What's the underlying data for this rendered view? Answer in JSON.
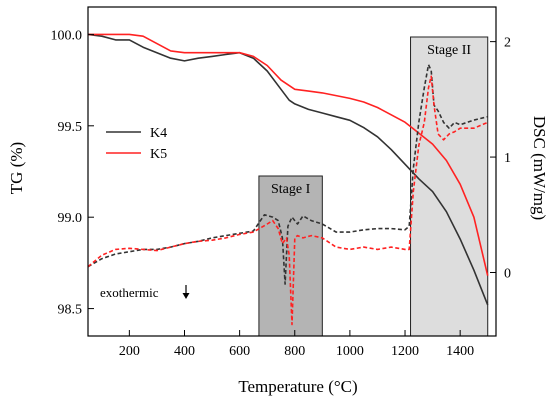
{
  "chart_data": {
    "type": "line",
    "xlabel": "Temperature (°C)",
    "ylabel_left": "TG (%)",
    "ylabel_right": "DSC (mW/mg)",
    "xlim": [
      50,
      1530
    ],
    "ylim_left": [
      98.35,
      100.15
    ],
    "ylim_right": [
      -0.55,
      2.3
    ],
    "x_ticks": [
      200,
      400,
      600,
      800,
      1000,
      1200,
      1400
    ],
    "y_left_ticks": [
      98.5,
      99.0,
      99.5,
      100.0
    ],
    "y_left_tick_labels": [
      "98.5",
      "99.0",
      "99.5",
      "100.0"
    ],
    "y_right_ticks": [
      0,
      1,
      2
    ],
    "legend": {
      "placement": "left",
      "entries": [
        "K4",
        "K5"
      ]
    },
    "colors": {
      "K4": "#333333",
      "K5": "#ff2222"
    },
    "stages": [
      {
        "label": "Stage I",
        "x_range": [
          670,
          900
        ],
        "fill": "#b4b4b4"
      },
      {
        "label": "Stage II",
        "x_range": [
          1220,
          1500
        ],
        "fill": "#dddddd"
      }
    ],
    "annotation": {
      "text": "exothermic",
      "direction": "down"
    },
    "series": [
      {
        "name": "K4",
        "axis": "left",
        "style": "solid",
        "x": [
          50,
          100,
          150,
          200,
          250,
          300,
          350,
          400,
          450,
          500,
          550,
          600,
          650,
          700,
          750,
          780,
          800,
          850,
          900,
          950,
          1000,
          1050,
          1100,
          1150,
          1200,
          1250,
          1300,
          1350,
          1400,
          1450,
          1500
        ],
        "y": [
          100.0,
          99.99,
          99.97,
          99.97,
          99.93,
          99.9,
          99.87,
          99.855,
          99.87,
          99.88,
          99.89,
          99.9,
          99.87,
          99.8,
          99.7,
          99.64,
          99.62,
          99.59,
          99.57,
          99.55,
          99.53,
          99.49,
          99.44,
          99.37,
          99.29,
          99.21,
          99.14,
          99.03,
          98.88,
          98.71,
          98.52
        ]
      },
      {
        "name": "K5",
        "axis": "left",
        "style": "solid",
        "x": [
          50,
          100,
          150,
          200,
          250,
          300,
          350,
          400,
          450,
          500,
          550,
          600,
          650,
          700,
          750,
          800,
          850,
          900,
          950,
          1000,
          1050,
          1100,
          1150,
          1200,
          1250,
          1300,
          1350,
          1400,
          1450,
          1500
        ],
        "y": [
          100.0,
          100.0,
          100.0,
          100.0,
          99.99,
          99.95,
          99.91,
          99.9,
          99.9,
          99.9,
          99.9,
          99.9,
          99.88,
          99.83,
          99.75,
          99.7,
          99.69,
          99.68,
          99.665,
          99.65,
          99.63,
          99.6,
          99.56,
          99.52,
          99.46,
          99.4,
          99.31,
          99.18,
          99.0,
          98.68
        ]
      },
      {
        "name": "K4 DSC",
        "axis": "right",
        "style": "dashed",
        "x": [
          50,
          100,
          150,
          200,
          250,
          300,
          350,
          400,
          450,
          500,
          550,
          600,
          650,
          690,
          720,
          740,
          755,
          765,
          775,
          790,
          810,
          830,
          860,
          900,
          950,
          1000,
          1050,
          1100,
          1150,
          1200,
          1215,
          1230,
          1250,
          1270,
          1285,
          1295,
          1305,
          1320,
          1340,
          1360,
          1380,
          1400,
          1450,
          1500
        ],
        "y": [
          0.05,
          0.12,
          0.16,
          0.18,
          0.2,
          0.2,
          0.22,
          0.25,
          0.27,
          0.3,
          0.32,
          0.34,
          0.36,
          0.5,
          0.48,
          0.45,
          0.3,
          -0.1,
          0.4,
          0.48,
          0.42,
          0.49,
          0.45,
          0.42,
          0.35,
          0.35,
          0.37,
          0.38,
          0.38,
          0.37,
          0.4,
          0.9,
          1.3,
          1.6,
          1.8,
          1.75,
          1.45,
          1.4,
          1.3,
          1.25,
          1.3,
          1.28,
          1.32,
          1.35
        ]
      },
      {
        "name": "K5 DSC",
        "axis": "right",
        "style": "dashed",
        "x": [
          50,
          100,
          150,
          200,
          250,
          300,
          350,
          400,
          450,
          500,
          550,
          600,
          650,
          700,
          720,
          740,
          755,
          770,
          780,
          790,
          800,
          810,
          830,
          860,
          900,
          950,
          1000,
          1050,
          1100,
          1150,
          1200,
          1215,
          1230,
          1250,
          1270,
          1285,
          1295,
          1305,
          1320,
          1340,
          1360,
          1380,
          1400,
          1450,
          1500
        ],
        "y": [
          0.05,
          0.15,
          0.2,
          0.21,
          0.2,
          0.19,
          0.22,
          0.25,
          0.27,
          0.28,
          0.3,
          0.33,
          0.35,
          0.42,
          0.45,
          0.38,
          0.25,
          0.3,
          0.15,
          -0.45,
          0.3,
          0.32,
          0.3,
          0.32,
          0.3,
          0.22,
          0.2,
          0.22,
          0.2,
          0.22,
          0.2,
          0.2,
          0.7,
          1.1,
          1.3,
          1.6,
          1.7,
          1.45,
          1.2,
          1.15,
          1.2,
          1.22,
          1.25,
          1.25,
          1.3
        ]
      }
    ]
  }
}
